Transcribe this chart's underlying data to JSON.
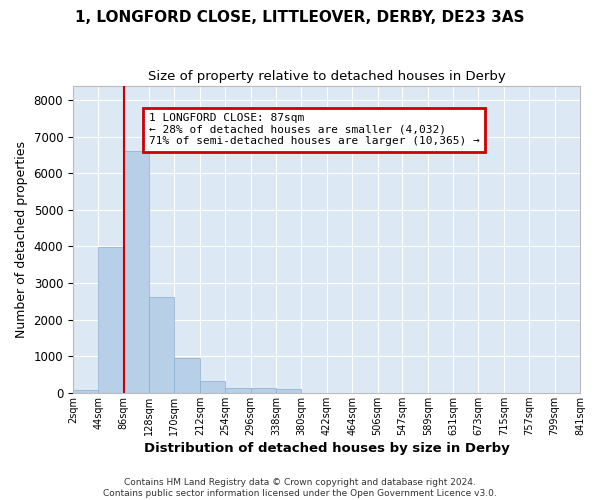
{
  "title_line1": "1, LONGFORD CLOSE, LITTLEOVER, DERBY, DE23 3AS",
  "title_line2": "Size of property relative to detached houses in Derby",
  "xlabel": "Distribution of detached houses by size in Derby",
  "ylabel": "Number of detached properties",
  "bar_color": "#b8cfe8",
  "bar_edge_color": "#8aadd0",
  "background_color": "#dde8f5",
  "grid_color": "#ffffff",
  "annotation_box_color": "#cc0000",
  "property_line_color": "#cc0000",
  "property_size": 87,
  "annotation_text_line1": "1 LONGFORD CLOSE: 87sqm",
  "annotation_text_line2": "← 28% of detached houses are smaller (4,032)",
  "annotation_text_line3": "71% of semi-detached houses are larger (10,365) →",
  "bin_edges": [
    2,
    44,
    86,
    128,
    170,
    212,
    254,
    296,
    338,
    380,
    422,
    464,
    506,
    547,
    589,
    631,
    673,
    715,
    757,
    799,
    841
  ],
  "bin_labels": [
    "2sqm",
    "44sqm",
    "86sqm",
    "128sqm",
    "170sqm",
    "212sqm",
    "254sqm",
    "296sqm",
    "338sqm",
    "380sqm",
    "422sqm",
    "464sqm",
    "506sqm",
    "547sqm",
    "589sqm",
    "631sqm",
    "673sqm",
    "715sqm",
    "757sqm",
    "799sqm",
    "841sqm"
  ],
  "bar_heights": [
    75,
    3980,
    6600,
    2620,
    960,
    320,
    130,
    120,
    90,
    0,
    0,
    0,
    0,
    0,
    0,
    0,
    0,
    0,
    0,
    0
  ],
  "ylim": [
    0,
    8400
  ],
  "yticks": [
    0,
    1000,
    2000,
    3000,
    4000,
    5000,
    6000,
    7000,
    8000
  ],
  "fig_bg": "#ffffff",
  "footnote": "Contains HM Land Registry data © Crown copyright and database right 2024.\nContains public sector information licensed under the Open Government Licence v3.0."
}
